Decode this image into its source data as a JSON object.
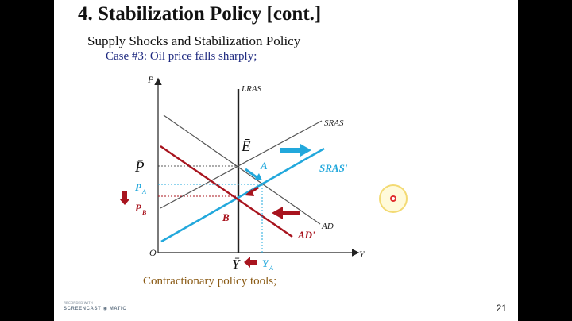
{
  "slide": {
    "title": "4. Stabilization Policy [cont.]",
    "subtitle": "Supply Shocks and Stabilization Policy",
    "case_text": "Case #3: Oil price falls sharply;",
    "footer_text": "Contractionary policy tools;",
    "page_number": "21"
  },
  "watermark": {
    "line1": "RECORDED WITH",
    "line2": "SCREENCAST ◉ MATIC"
  },
  "diagram": {
    "axis_y_label": "P",
    "axis_x_label": "Y",
    "origin_label": "O",
    "lras_label": "LRAS",
    "sras_label": "SRAS",
    "sras_prime_label": "SRAS'",
    "ad_label": "AD",
    "ad_prime_label": "AD'",
    "point_e_label": "Ē",
    "point_a_label": "A",
    "point_b_label": "B",
    "p_bar_label": "P̄",
    "pa_label": "P",
    "pa_sub": "A",
    "pb_label": "P",
    "pb_sub": "B",
    "y_bar_label": "Ȳ",
    "ya_label": "Y",
    "ya_sub": "A"
  },
  "colors": {
    "blue": "#22a8dc",
    "red": "#a8141e",
    "axis": "#222222",
    "gray_line": "#444444"
  }
}
